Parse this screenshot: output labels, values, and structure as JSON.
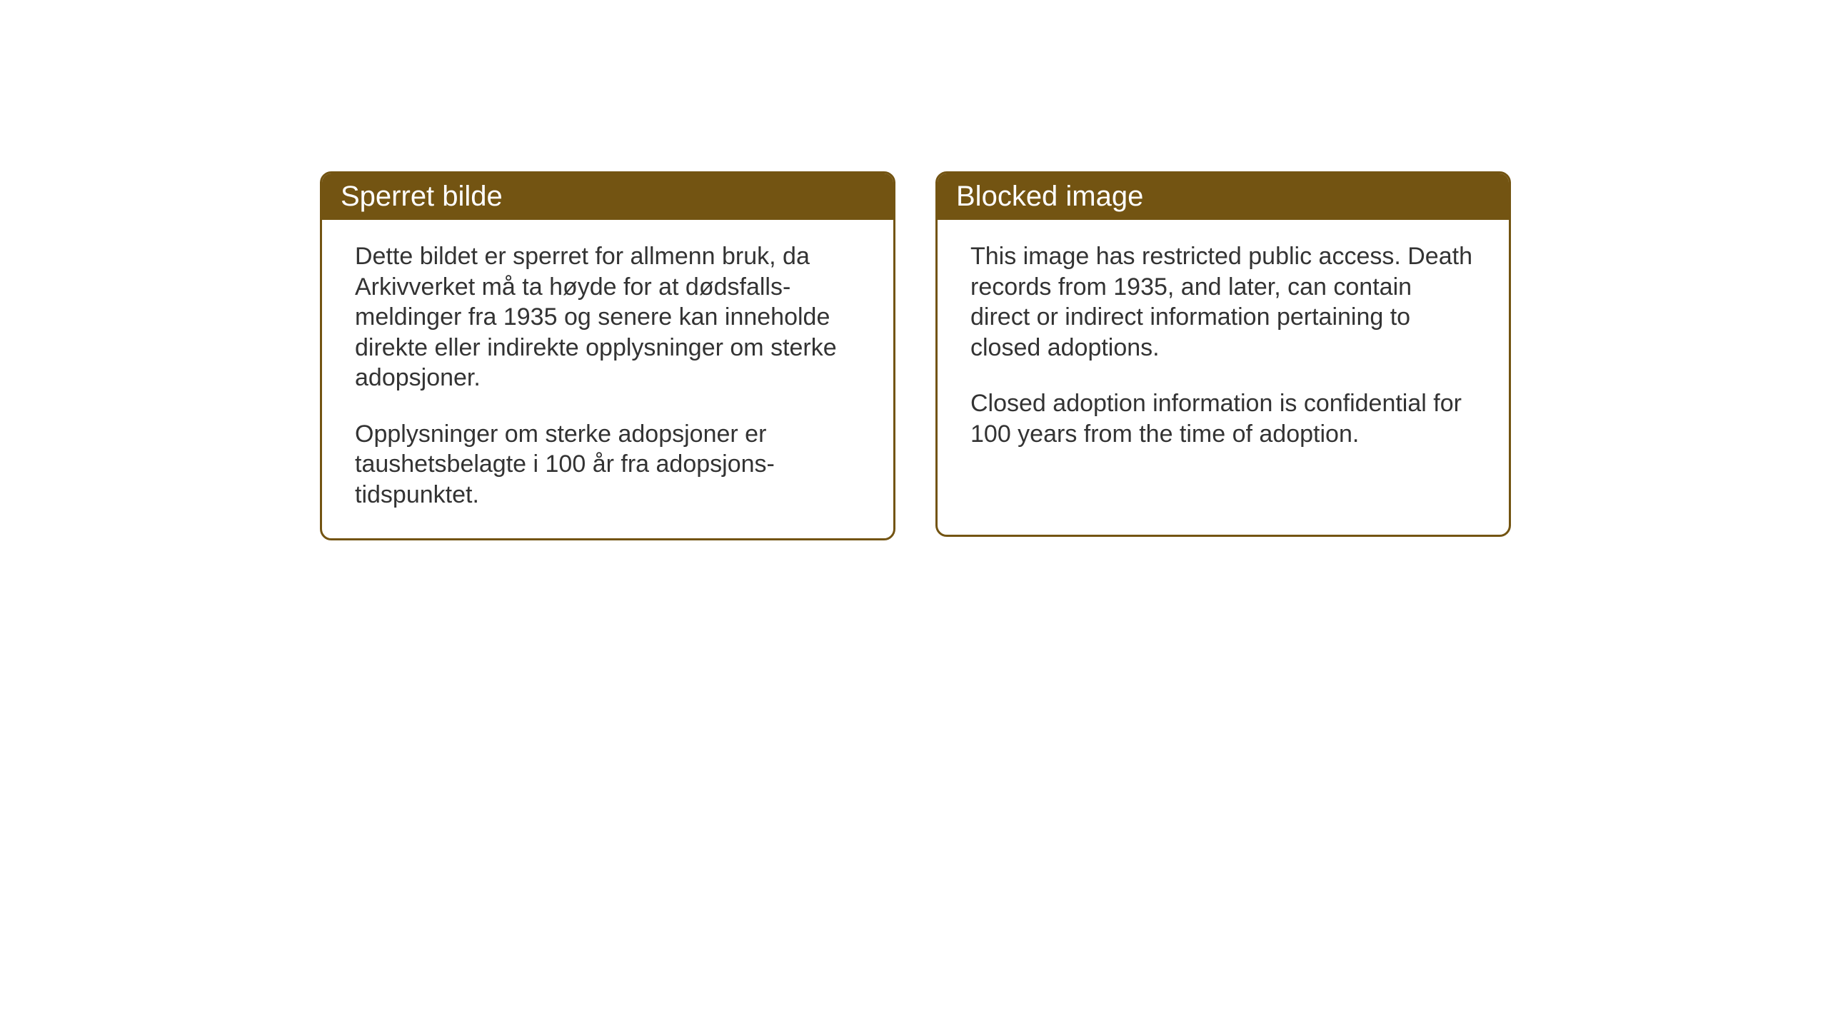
{
  "cards": [
    {
      "title": "Sperret bilde",
      "paragraph1": "Dette bildet er sperret for allmenn bruk, da Arkivverket må ta høyde for at dødsfalls-meldinger fra 1935 og senere kan inneholde direkte eller indirekte opplysninger om sterke adopsjoner.",
      "paragraph2": "Opplysninger om sterke adopsjoner er taushetsbelagte i 100 år fra adopsjons-tidspunktet."
    },
    {
      "title": "Blocked image",
      "paragraph1": "This image has restricted public access. Death records from 1935, and later, can contain direct or indirect information pertaining to closed adoptions.",
      "paragraph2": "Closed adoption information is confidential for 100 years from the time of adoption."
    }
  ],
  "style": {
    "header_bg_color": "#735412",
    "header_text_color": "#ffffff",
    "border_color": "#735412",
    "body_text_color": "#333333",
    "background_color": "#ffffff",
    "border_radius": 16,
    "border_width": 3,
    "title_fontsize": 40,
    "body_fontsize": 34
  }
}
